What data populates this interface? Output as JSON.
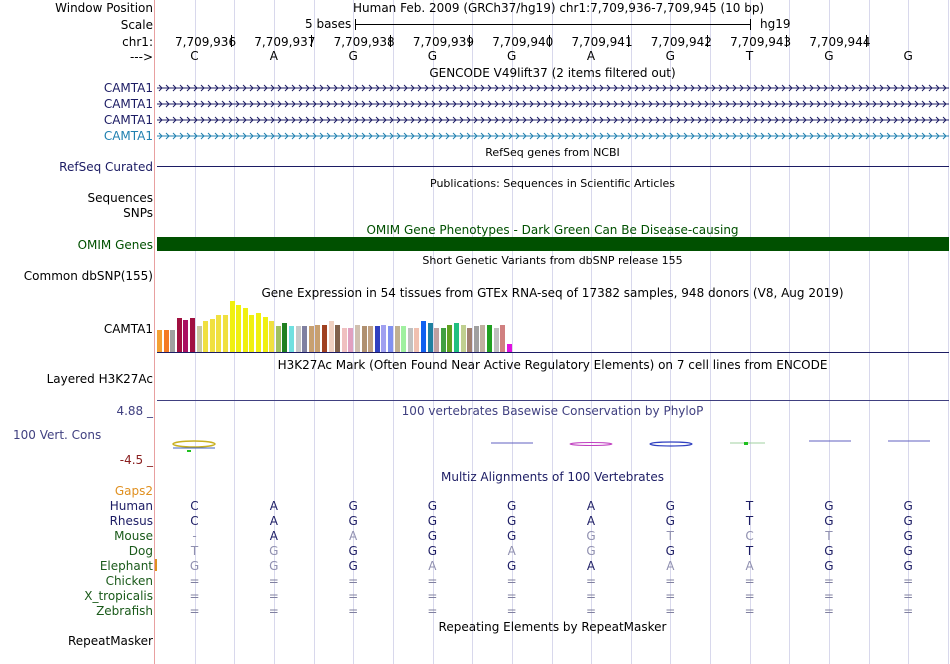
{
  "header": {
    "window_position_label": "Window Position",
    "position_title": "Human Feb. 2009 (GRCh37/hg19)   chr1:7,709,936-7,709,945 (10 bp)",
    "scale_label": "Scale",
    "scale_text": "5 bases",
    "assembly": "hg19",
    "chrom_label": "chr1:",
    "strand_label": "--->",
    "coords": [
      "7,709,936",
      "7,709,937",
      "7,709,938",
      "7,709,939",
      "7,709,940",
      "7,709,941",
      "7,709,942",
      "7,709,943",
      "7,709,944"
    ],
    "bases": [
      "C",
      "A",
      "G",
      "G",
      "G",
      "A",
      "G",
      "T",
      "G",
      "G"
    ]
  },
  "tracks": {
    "gencode_title": "GENCODE V49lift37 (2 items filtered out)",
    "gencode_items": [
      "CAMTA1",
      "CAMTA1",
      "CAMTA1",
      "CAMTA1"
    ],
    "refseq_label": "RefSeq Curated",
    "refseq_title": "RefSeq genes from NCBI",
    "pubs_title": "Publications: Sequences in Scientific Articles",
    "sequences_label": "Sequences",
    "snps_label": "SNPs",
    "omim_title": "OMIM Gene Phenotypes - Dark Green Can Be Disease-causing",
    "omim_label": "OMIM Genes",
    "dbsnp_label": "Common dbSNP(155)",
    "dbsnp_title": "Short Genetic Variants from dbSNP release 155",
    "gtex_title": "Gene Expression in 54 tissues from GTEx RNA-seq of 17382 samples, 948 donors (V8, Aug 2019)",
    "gtex_label": "CAMTA1",
    "h3k27_title": "H3K27Ac Mark (Often Found Near Active Regulatory Elements) on 7 cell lines from ENCODE",
    "h3k27_label": "Layered H3K27Ac",
    "cons_max": "4.88 _",
    "cons_title": "100 vertebrates Basewise Conservation by PhyloP",
    "cons_label": "100 Vert. Cons",
    "cons_min": "-4.5 _",
    "multiz_title": "Multiz Alignments of 100 Vertebrates",
    "gaps_label": "Gaps2",
    "repeat_title": "Repeating Elements by RepeatMasker",
    "repeat_label": "RepeatMasker"
  },
  "alignment": [
    {
      "species": "Human",
      "bases": [
        "C",
        "A",
        "G",
        "G",
        "G",
        "A",
        "G",
        "T",
        "G",
        "G"
      ]
    },
    {
      "species": "Rhesus",
      "bases": [
        "C",
        "A",
        "G",
        "G",
        "G",
        "A",
        "G",
        "T",
        "G",
        "G"
      ]
    },
    {
      "species": "Mouse",
      "bases": [
        "-",
        "A",
        "A",
        "G",
        "G",
        "G",
        "T",
        "C",
        "T",
        "G"
      ]
    },
    {
      "species": "Dog",
      "bases": [
        "T",
        "G",
        "G",
        "G",
        "A",
        "G",
        "G",
        "T",
        "G",
        "G"
      ]
    },
    {
      "species": "Elephant",
      "bases": [
        "G",
        "G",
        "G",
        "A",
        "G",
        "A",
        "A",
        "A",
        "G",
        "G"
      ]
    },
    {
      "species": "Chicken",
      "bases": [
        "=",
        "=",
        "=",
        "=",
        "=",
        "=",
        "=",
        "=",
        "=",
        "="
      ]
    },
    {
      "species": "X_tropicalis",
      "bases": [
        "=",
        "=",
        "=",
        "=",
        "=",
        "=",
        "=",
        "=",
        "=",
        "="
      ]
    },
    {
      "species": "Zebrafish",
      "bases": [
        "=",
        "=",
        "=",
        "=",
        "=",
        "=",
        "=",
        "=",
        "=",
        "="
      ]
    }
  ],
  "gtex_values": [
    22,
    22,
    22,
    35,
    33,
    35,
    27,
    32,
    34,
    38,
    38,
    52,
    48,
    45,
    38,
    40,
    36,
    32,
    27,
    30,
    26,
    26,
    26,
    27,
    28,
    28,
    32,
    28,
    24,
    24,
    28,
    26,
    26,
    26,
    28,
    26,
    26,
    27,
    24,
    24,
    32,
    30,
    24,
    24,
    28,
    30,
    28,
    24,
    26,
    28,
    28,
    24,
    28,
    8
  ],
  "gtex_colors": [
    "#f4a034",
    "#f47a24",
    "#a0a0a0",
    "#a01040",
    "#aa1060",
    "#a01040",
    "#c8c8a0",
    "#f0e040",
    "#f0e040",
    "#f0e040",
    "#f0e040",
    "#f0f010",
    "#f0f010",
    "#f0f010",
    "#f0f010",
    "#f0f010",
    "#f0f010",
    "#f0e040",
    "#a0c060",
    "#208020",
    "#70e0e0",
    "#c8c8c8",
    "#8080a0",
    "#c8a070",
    "#c8a070",
    "#a04020",
    "#f0d0c0",
    "#80604a",
    "#f0c0c0",
    "#e0a0c0",
    "#d0c0b0",
    "#b09070",
    "#c0a080",
    "#3040c0",
    "#a0a0f0",
    "#8090f0",
    "#c0b090",
    "#a0f0a0",
    "#c0c0c0",
    "#f0c0b0",
    "#1060f0",
    "#2080a0",
    "#c0a0a0",
    "#40a040",
    "#60a020",
    "#20c080",
    "#c0d090",
    "#a08070",
    "#a0a0a0",
    "#c0b0a0",
    "#20a020",
    "#c0c0c0",
    "#d08080",
    "#e010e0"
  ],
  "colors": {
    "gencode": "#1c1c64",
    "gencode_last": "#2080b0",
    "omim": "#005000",
    "cons_axis": "#404080",
    "species_green": "#1a5a1a",
    "gaps": "#e09020"
  }
}
